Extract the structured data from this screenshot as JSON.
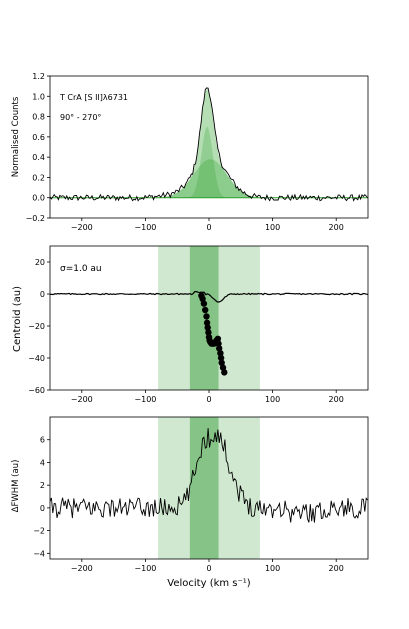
{
  "chart_data": [
    {
      "type": "line",
      "panel": "top",
      "title": "",
      "xlabel": "",
      "ylabel": "Normalised Counts",
      "xlim": [
        -250,
        250
      ],
      "ylim": [
        -0.2,
        1.2
      ],
      "xticks": [
        -200,
        -100,
        0,
        100,
        200
      ],
      "yticks": [
        -0.2,
        0.0,
        0.2,
        0.4,
        0.6,
        0.8,
        1.0,
        1.2
      ],
      "xtick_labels": [
        "−200",
        "−100",
        "0",
        "100",
        "200"
      ],
      "ytick_labels": [
        "−0.2",
        "0.0",
        "0.2",
        "0.4",
        "0.6",
        "0.8",
        "1.0",
        "1.2"
      ],
      "annotations": [
        "T CrA [S II]λ6731",
        "90° - 270°"
      ],
      "components": [
        {
          "amplitude": 0.7,
          "center": -3,
          "sigma": 9
        },
        {
          "amplitude": 0.38,
          "center": 2,
          "sigma": 26
        }
      ],
      "colors": {
        "line": "#000000",
        "fill": "#2ca02c",
        "fill_light": "#98d498"
      }
    },
    {
      "type": "scatter",
      "panel": "middle",
      "xlabel": "",
      "ylabel": "Centroid (au)",
      "xlim": [
        -250,
        250
      ],
      "ylim": [
        -60,
        30
      ],
      "xticks": [
        -200,
        -100,
        0,
        100,
        200
      ],
      "yticks": [
        -60,
        -40,
        -20,
        0,
        20
      ],
      "xtick_labels": [
        "−200",
        "−100",
        "0",
        "100",
        "200"
      ],
      "ytick_labels": [
        "−60",
        "−40",
        "−20",
        "0",
        "20"
      ],
      "annotation": "σ=1.0 au",
      "bands": {
        "outer": [
          -80,
          80
        ],
        "inner": [
          -30,
          15
        ]
      },
      "points": [
        {
          "x": -12,
          "y": -1
        },
        {
          "x": -10,
          "y": -3
        },
        {
          "x": -8,
          "y": -6
        },
        {
          "x": -6,
          "y": -10
        },
        {
          "x": -4,
          "y": -14
        },
        {
          "x": -3,
          "y": -18
        },
        {
          "x": -2,
          "y": -21
        },
        {
          "x": -1,
          "y": -24
        },
        {
          "x": 0,
          "y": -27
        },
        {
          "x": 1,
          "y": -29
        },
        {
          "x": 2,
          "y": -30
        },
        {
          "x": 4,
          "y": -31
        },
        {
          "x": 6,
          "y": -31
        },
        {
          "x": 8,
          "y": -31
        },
        {
          "x": 10,
          "y": -30
        },
        {
          "x": 12,
          "y": -29
        },
        {
          "x": 14,
          "y": -28
        },
        {
          "x": 15,
          "y": -31
        },
        {
          "x": 16,
          "y": -34
        },
        {
          "x": 18,
          "y": -37
        },
        {
          "x": 19,
          "y": -40
        },
        {
          "x": 20,
          "y": -43
        },
        {
          "x": 22,
          "y": -46
        },
        {
          "x": 24,
          "y": -49
        }
      ]
    },
    {
      "type": "line",
      "panel": "bottom",
      "xlabel": "Velocity (km s⁻¹)",
      "ylabel": "ΔFWHM (au)",
      "xlim": [
        -250,
        250
      ],
      "ylim": [
        -4.5,
        8
      ],
      "xticks": [
        -200,
        -100,
        0,
        100,
        200
      ],
      "yticks": [
        -4,
        -2,
        0,
        2,
        4,
        6
      ],
      "xtick_labels": [
        "−200",
        "−100",
        "0",
        "100",
        "200"
      ],
      "ytick_labels": [
        "−4",
        "−2",
        "0",
        "2",
        "4",
        "6"
      ],
      "bands": {
        "outer": [
          -80,
          80
        ],
        "inner": [
          -30,
          15
        ]
      }
    }
  ],
  "colors": {
    "band_outer": "#cfe8cf",
    "band_inner": "#86c386",
    "fill_dark": "#6dbb6d",
    "fill_light": "#b9e0b9"
  }
}
